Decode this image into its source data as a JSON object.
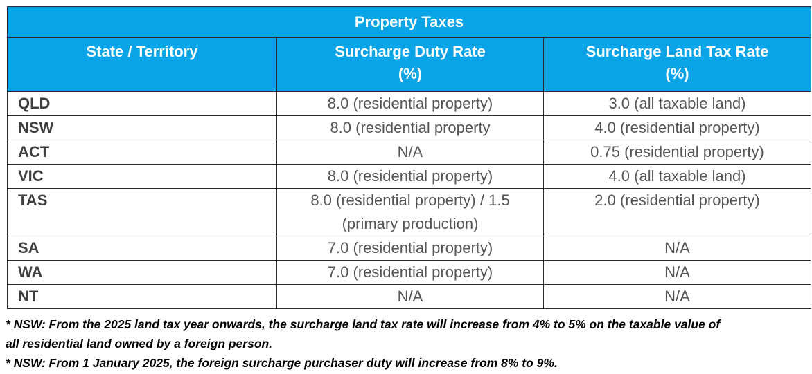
{
  "table": {
    "title": "Property Taxes",
    "headers": {
      "state": "State / Territory",
      "duty_line1": "Surcharge Duty Rate",
      "duty_line2": "(%)",
      "land_line1": "Surcharge Land Tax Rate",
      "land_line2": "(%)"
    },
    "rows": [
      {
        "state": "QLD",
        "duty": "8.0 (residential property)",
        "land": "3.0 (all taxable land)"
      },
      {
        "state": "NSW",
        "duty": "8.0 (residential property",
        "land": "4.0 (residential property)"
      },
      {
        "state": "ACT",
        "duty": "N/A",
        "land": "0.75 (residential property)"
      },
      {
        "state": "VIC",
        "duty": "8.0 (residential property)",
        "land": "4.0 (all taxable land)"
      },
      {
        "state": "TAS",
        "duty_line1": "8.0 (residential property) / 1.5",
        "duty_line2": "(primary production)",
        "land": "2.0 (residential property)"
      },
      {
        "state": "SA",
        "duty": "7.0 (residential property)",
        "land": "N/A"
      },
      {
        "state": "WA",
        "duty": "7.0 (residential property)",
        "land": "N/A"
      },
      {
        "state": "NT",
        "duty": "N/A",
        "land": "N/A"
      }
    ]
  },
  "notes": {
    "note1_line1": "* NSW: From the 2025 land tax year onwards, the surcharge land tax rate will increase from 4% to 5% on the taxable value of",
    "note1_line2": "all residential land owned by a foreign person.",
    "note2": "* NSW: From 1 January 2025, the foreign surcharge purchaser duty will increase from 8% to 9%."
  },
  "colors": {
    "header_bg": "#0aa3e6",
    "header_text": "#ffffff",
    "cell_text": "#555555",
    "border": "#2b2b2b"
  }
}
